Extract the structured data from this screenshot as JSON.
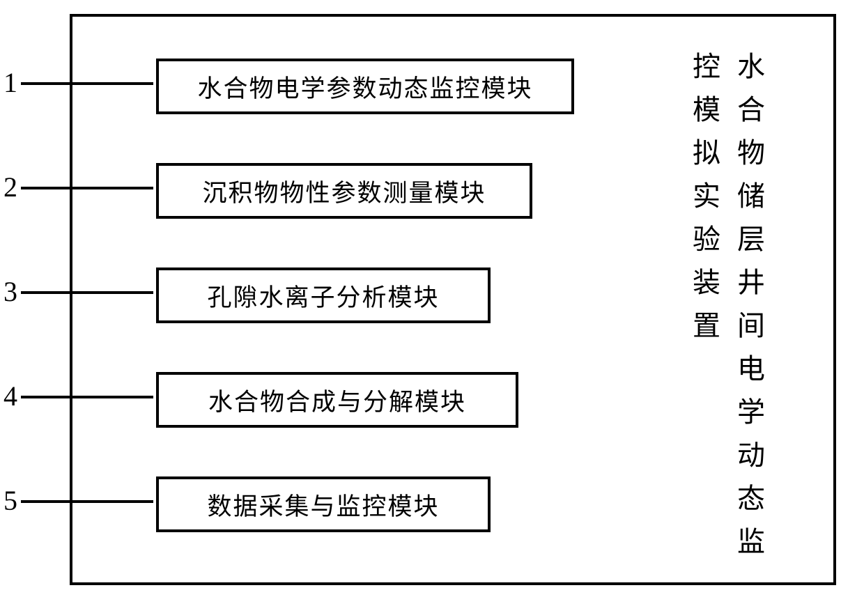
{
  "diagram": {
    "type": "block-diagram",
    "title_col1": "水合物储层井间电学动态监控模拟实验装置",
    "modules": [
      {
        "number": "1",
        "label": "水合物电学参数动态监控模块"
      },
      {
        "number": "2",
        "label": "沉积物物性参数测量模块"
      },
      {
        "number": "3",
        "label": "孔隙水离子分析模块"
      },
      {
        "number": "4",
        "label": "水合物合成与分解模块"
      },
      {
        "number": "5",
        "label": "数据采集与监控模块"
      }
    ],
    "colors": {
      "background": "#ffffff",
      "border": "#000000",
      "text": "#000000"
    },
    "border_width": 4,
    "module_font_size": 35,
    "title_font_size": 40,
    "number_font_size": 40
  }
}
